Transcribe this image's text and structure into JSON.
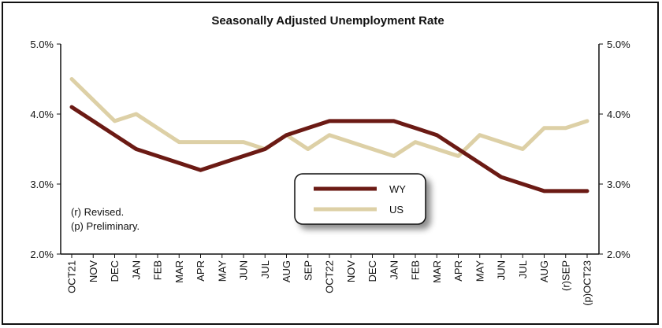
{
  "chart_data": {
    "type": "line",
    "title": "Seasonally Adjusted Unemployment Rate",
    "categories": [
      "OCT21",
      "NOV",
      "DEC",
      "JAN",
      "FEB",
      "MAR",
      "APR",
      "MAY",
      "JUN",
      "JUL",
      "AUG",
      "SEP",
      "OCT22",
      "NOV",
      "DEC",
      "JAN",
      "FEB",
      "MAR",
      "APR",
      "MAY",
      "JUN",
      "JUL",
      "AUG",
      "(r)SEP",
      "(p)OCT23"
    ],
    "ylim": [
      2.0,
      5.0
    ],
    "yticks": [
      "2.0%",
      "3.0%",
      "4.0%",
      "5.0%"
    ],
    "ytick_values": [
      2.0,
      3.0,
      4.0,
      5.0
    ],
    "grid": false,
    "legend_position": "center",
    "series": [
      {
        "name": "WY",
        "color": "#6b1a14",
        "values": [
          4.1,
          3.9,
          3.7,
          3.5,
          3.4,
          3.3,
          3.2,
          3.3,
          3.4,
          3.5,
          3.7,
          3.8,
          3.9,
          3.9,
          3.9,
          3.9,
          3.8,
          3.7,
          3.5,
          3.3,
          3.1,
          3.0,
          2.9,
          2.9,
          2.9
        ]
      },
      {
        "name": "US",
        "color": "#ddd0a6",
        "values": [
          4.5,
          4.2,
          3.9,
          4.0,
          3.8,
          3.6,
          3.6,
          3.6,
          3.6,
          3.5,
          3.7,
          3.5,
          3.7,
          3.6,
          3.5,
          3.4,
          3.6,
          3.5,
          3.4,
          3.7,
          3.6,
          3.5,
          3.8,
          3.8,
          3.9
        ]
      }
    ],
    "annotations": [
      "(r) Revised.",
      "(p) Preliminary."
    ]
  }
}
